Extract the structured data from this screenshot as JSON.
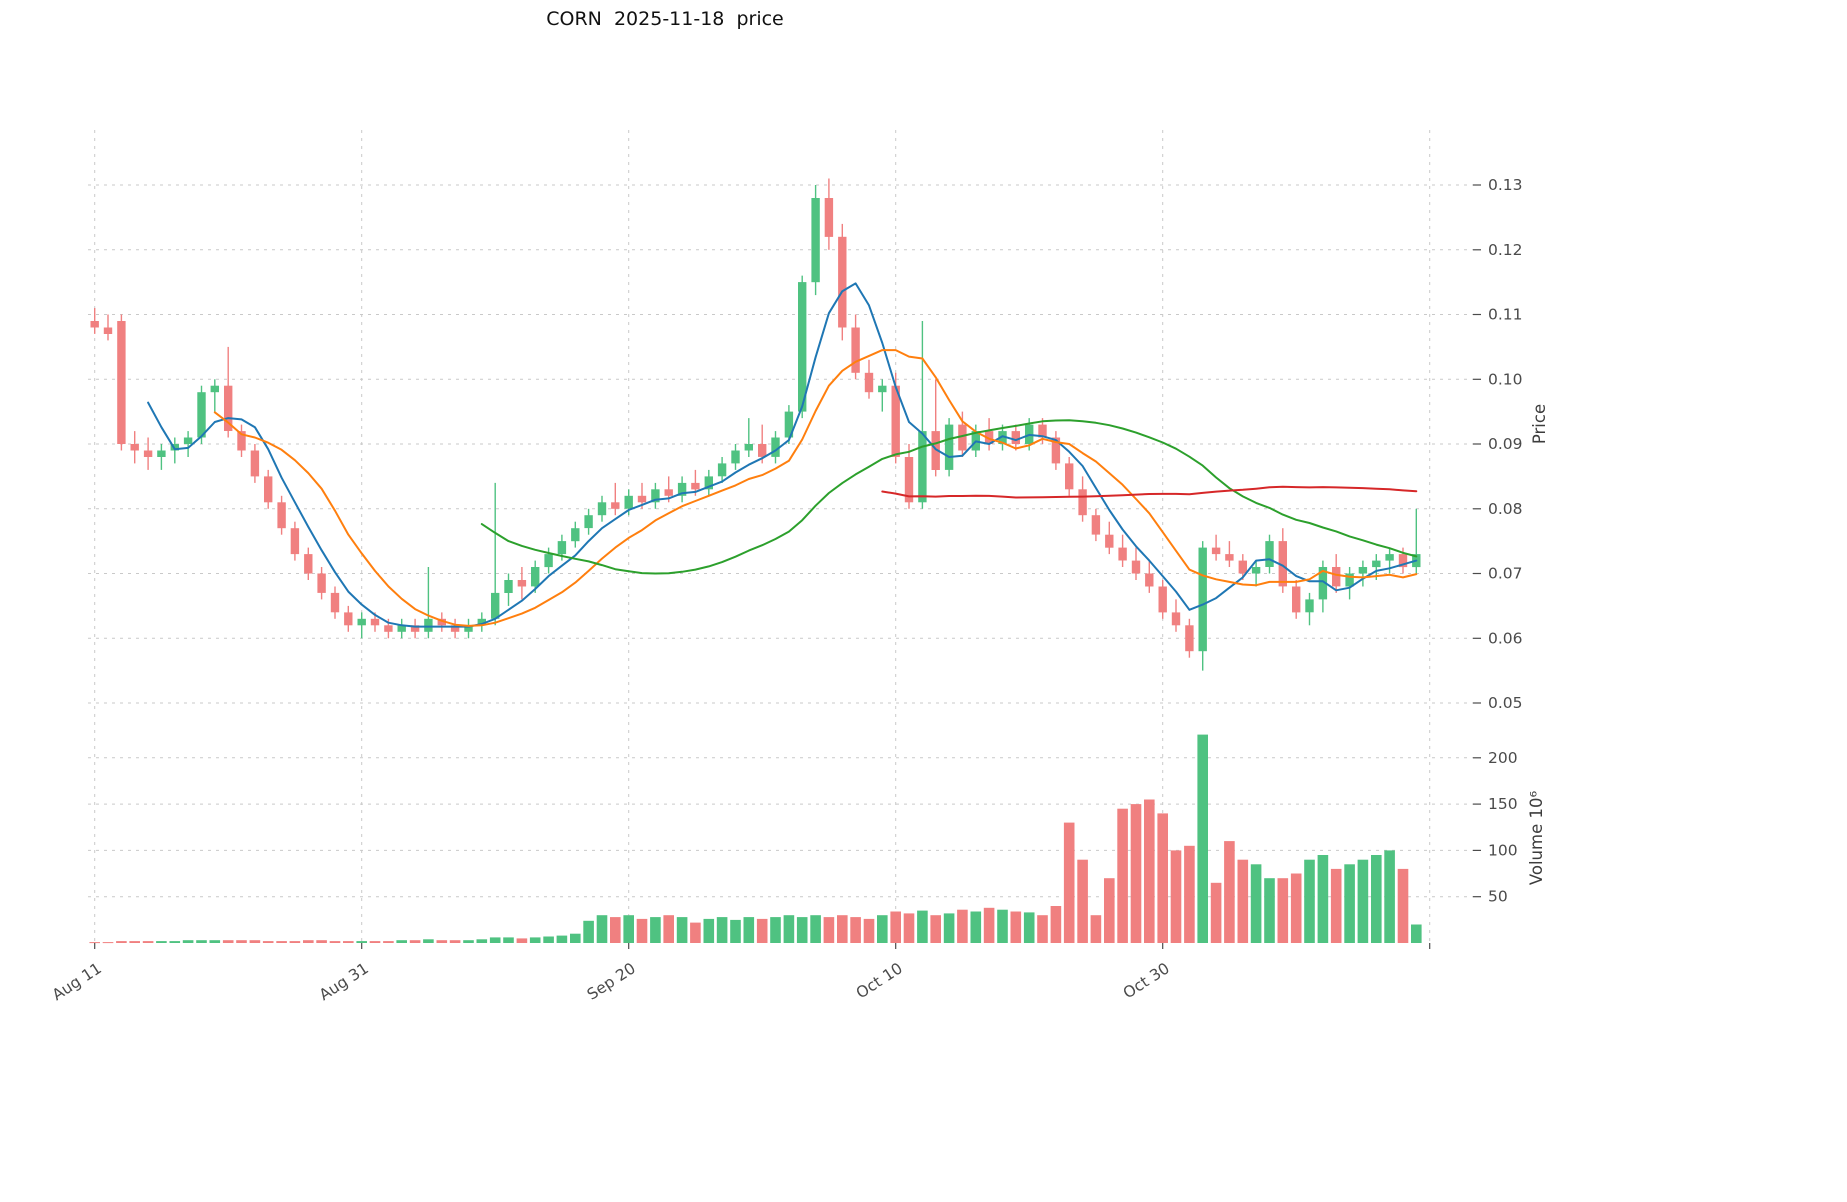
{
  "title": "CORN  2025-11-18  price",
  "chart_data": {
    "type": "candlestick",
    "title": "CORN  2025-11-18  price",
    "grid": "dashed",
    "legend": "none",
    "price_axis": {
      "label": "Price",
      "side": "right",
      "ticks": [
        0.05,
        0.06,
        0.07,
        0.08,
        0.09,
        0.1,
        0.11,
        0.12,
        0.13
      ],
      "range": [
        0.048,
        0.139
      ]
    },
    "volume_axis": {
      "label": "Volume  10⁶",
      "side": "right",
      "ticks": [
        50,
        100,
        150,
        200
      ],
      "range": [
        0,
        235
      ],
      "unit": "millions"
    },
    "x_ticks": [
      {
        "index": 0,
        "label": "Aug 11"
      },
      {
        "index": 20,
        "label": "Aug 31"
      },
      {
        "index": 40,
        "label": "Sep 20"
      },
      {
        "index": 60,
        "label": "Oct 10"
      },
      {
        "index": 80,
        "label": "Oct 30"
      },
      {
        "index": 100,
        "label": ""
      }
    ],
    "overlays": [
      {
        "name": "sma-short",
        "period": 5,
        "color": "#1f77b4"
      },
      {
        "name": "sma-medium",
        "period": 10,
        "color": "#ff7f0e"
      },
      {
        "name": "sma-long",
        "period": 30,
        "color": "#2ca02c"
      },
      {
        "name": "sma-longest",
        "period": 60,
        "color": "#d62728"
      }
    ],
    "colors": {
      "up": "#4fc281",
      "down": "#f08080",
      "grid": "#c9c9c9",
      "tick_text": "#4b4b4b",
      "axis_label_text": "#3d3d3d"
    },
    "candles_ohlc": [
      [
        0.109,
        0.111,
        0.107,
        0.108
      ],
      [
        0.108,
        0.11,
        0.106,
        0.107
      ],
      [
        0.109,
        0.11,
        0.089,
        0.09
      ],
      [
        0.09,
        0.092,
        0.087,
        0.089
      ],
      [
        0.089,
        0.091,
        0.086,
        0.088
      ],
      [
        0.088,
        0.09,
        0.086,
        0.089
      ],
      [
        0.089,
        0.091,
        0.087,
        0.09
      ],
      [
        0.09,
        0.092,
        0.088,
        0.091
      ],
      [
        0.091,
        0.099,
        0.09,
        0.098
      ],
      [
        0.098,
        0.1,
        0.095,
        0.099
      ],
      [
        0.099,
        0.105,
        0.091,
        0.092
      ],
      [
        0.092,
        0.093,
        0.088,
        0.089
      ],
      [
        0.089,
        0.09,
        0.084,
        0.085
      ],
      [
        0.085,
        0.086,
        0.08,
        0.081
      ],
      [
        0.081,
        0.082,
        0.076,
        0.077
      ],
      [
        0.077,
        0.078,
        0.072,
        0.073
      ],
      [
        0.073,
        0.074,
        0.069,
        0.07
      ],
      [
        0.07,
        0.071,
        0.066,
        0.067
      ],
      [
        0.067,
        0.068,
        0.063,
        0.064
      ],
      [
        0.064,
        0.065,
        0.061,
        0.062
      ],
      [
        0.062,
        0.064,
        0.06,
        0.063
      ],
      [
        0.063,
        0.064,
        0.061,
        0.062
      ],
      [
        0.062,
        0.063,
        0.06,
        0.061
      ],
      [
        0.061,
        0.063,
        0.06,
        0.062
      ],
      [
        0.062,
        0.063,
        0.06,
        0.061
      ],
      [
        0.061,
        0.071,
        0.06,
        0.063
      ],
      [
        0.063,
        0.064,
        0.061,
        0.062
      ],
      [
        0.062,
        0.063,
        0.06,
        0.061
      ],
      [
        0.061,
        0.063,
        0.06,
        0.062
      ],
      [
        0.062,
        0.064,
        0.061,
        0.063
      ],
      [
        0.063,
        0.084,
        0.062,
        0.067
      ],
      [
        0.067,
        0.07,
        0.065,
        0.069
      ],
      [
        0.069,
        0.071,
        0.066,
        0.068
      ],
      [
        0.068,
        0.072,
        0.067,
        0.071
      ],
      [
        0.071,
        0.074,
        0.07,
        0.073
      ],
      [
        0.073,
        0.076,
        0.072,
        0.075
      ],
      [
        0.075,
        0.078,
        0.074,
        0.077
      ],
      [
        0.077,
        0.08,
        0.076,
        0.079
      ],
      [
        0.079,
        0.082,
        0.078,
        0.081
      ],
      [
        0.081,
        0.084,
        0.079,
        0.08
      ],
      [
        0.08,
        0.083,
        0.079,
        0.082
      ],
      [
        0.082,
        0.084,
        0.08,
        0.081
      ],
      [
        0.081,
        0.084,
        0.08,
        0.083
      ],
      [
        0.083,
        0.085,
        0.081,
        0.082
      ],
      [
        0.082,
        0.085,
        0.081,
        0.084
      ],
      [
        0.084,
        0.086,
        0.082,
        0.083
      ],
      [
        0.083,
        0.086,
        0.082,
        0.085
      ],
      [
        0.085,
        0.088,
        0.084,
        0.087
      ],
      [
        0.087,
        0.09,
        0.086,
        0.089
      ],
      [
        0.089,
        0.094,
        0.088,
        0.09
      ],
      [
        0.09,
        0.093,
        0.087,
        0.088
      ],
      [
        0.088,
        0.092,
        0.087,
        0.091
      ],
      [
        0.091,
        0.096,
        0.09,
        0.095
      ],
      [
        0.095,
        0.116,
        0.094,
        0.115
      ],
      [
        0.115,
        0.13,
        0.113,
        0.128
      ],
      [
        0.128,
        0.131,
        0.12,
        0.122
      ],
      [
        0.122,
        0.124,
        0.106,
        0.108
      ],
      [
        0.108,
        0.11,
        0.1,
        0.101
      ],
      [
        0.101,
        0.103,
        0.097,
        0.098
      ],
      [
        0.098,
        0.1,
        0.095,
        0.099
      ],
      [
        0.099,
        0.101,
        0.087,
        0.088
      ],
      [
        0.088,
        0.09,
        0.08,
        0.081
      ],
      [
        0.081,
        0.109,
        0.08,
        0.092
      ],
      [
        0.092,
        0.1,
        0.085,
        0.086
      ],
      [
        0.086,
        0.094,
        0.085,
        0.093
      ],
      [
        0.093,
        0.095,
        0.088,
        0.089
      ],
      [
        0.089,
        0.093,
        0.088,
        0.092
      ],
      [
        0.092,
        0.094,
        0.089,
        0.09
      ],
      [
        0.09,
        0.093,
        0.089,
        0.092
      ],
      [
        0.092,
        0.093,
        0.089,
        0.09
      ],
      [
        0.09,
        0.094,
        0.089,
        0.093
      ],
      [
        0.093,
        0.094,
        0.09,
        0.091
      ],
      [
        0.091,
        0.092,
        0.086,
        0.087
      ],
      [
        0.087,
        0.088,
        0.082,
        0.083
      ],
      [
        0.083,
        0.085,
        0.078,
        0.079
      ],
      [
        0.079,
        0.08,
        0.075,
        0.076
      ],
      [
        0.076,
        0.078,
        0.073,
        0.074
      ],
      [
        0.074,
        0.076,
        0.071,
        0.072
      ],
      [
        0.072,
        0.074,
        0.069,
        0.07
      ],
      [
        0.07,
        0.072,
        0.067,
        0.068
      ],
      [
        0.068,
        0.069,
        0.063,
        0.064
      ],
      [
        0.064,
        0.066,
        0.061,
        0.062
      ],
      [
        0.062,
        0.063,
        0.057,
        0.058
      ],
      [
        0.058,
        0.075,
        0.055,
        0.074
      ],
      [
        0.074,
        0.076,
        0.072,
        0.073
      ],
      [
        0.073,
        0.075,
        0.071,
        0.072
      ],
      [
        0.072,
        0.073,
        0.069,
        0.07
      ],
      [
        0.07,
        0.072,
        0.068,
        0.071
      ],
      [
        0.071,
        0.076,
        0.07,
        0.075
      ],
      [
        0.075,
        0.077,
        0.067,
        0.068
      ],
      [
        0.068,
        0.069,
        0.063,
        0.064
      ],
      [
        0.064,
        0.067,
        0.062,
        0.066
      ],
      [
        0.066,
        0.072,
        0.064,
        0.071
      ],
      [
        0.071,
        0.073,
        0.067,
        0.068
      ],
      [
        0.068,
        0.071,
        0.066,
        0.07
      ],
      [
        0.07,
        0.072,
        0.068,
        0.071
      ],
      [
        0.071,
        0.073,
        0.069,
        0.072
      ],
      [
        0.072,
        0.074,
        0.07,
        0.073
      ],
      [
        0.073,
        0.074,
        0.07,
        0.071
      ],
      [
        0.071,
        0.08,
        0.07,
        0.073
      ]
    ],
    "volume_millions": [
      1,
      1,
      2,
      2,
      2,
      2,
      2,
      3,
      3,
      3,
      3,
      3,
      3,
      2,
      2,
      2,
      3,
      3,
      2,
      2,
      2,
      2,
      2,
      3,
      3,
      4,
      3,
      3,
      3,
      4,
      6,
      6,
      5,
      6,
      7,
      8,
      10,
      24,
      30,
      28,
      30,
      26,
      28,
      30,
      28,
      22,
      26,
      28,
      25,
      28,
      26,
      28,
      30,
      28,
      30,
      28,
      30,
      28,
      26,
      30,
      34,
      32,
      35,
      30,
      32,
      36,
      34,
      38,
      36,
      34,
      33,
      30,
      40,
      130,
      90,
      30,
      70,
      145,
      150,
      155,
      140,
      100,
      105,
      225,
      65,
      110,
      90,
      85,
      70,
      70,
      75,
      90,
      95,
      80,
      85,
      90,
      95,
      100,
      80,
      20
    ]
  }
}
